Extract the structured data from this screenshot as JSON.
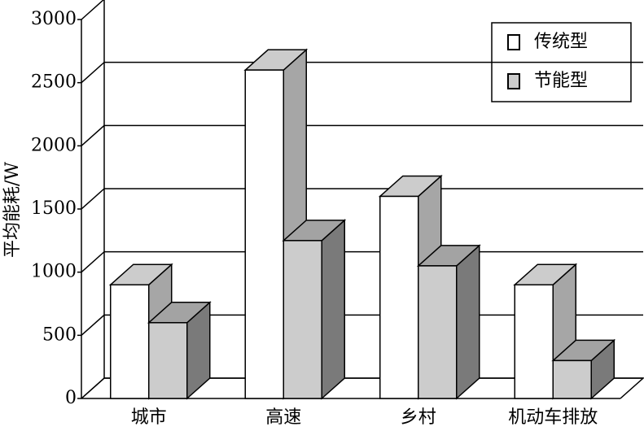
{
  "chart_data": {
    "type": "bar3d",
    "y_label": "平均能耗/W",
    "categories": [
      "城市",
      "高速",
      "乡村",
      "机动车排放"
    ],
    "series": [
      {
        "name": "传统型",
        "color": "#ffffff",
        "values": [
          900,
          2600,
          1600,
          900
        ]
      },
      {
        "name": "节能型",
        "color": "#cccccc",
        "values": [
          600,
          1250,
          1050,
          300
        ]
      }
    ],
    "ylim": [
      0,
      3000
    ],
    "yticks": [
      0,
      500,
      1000,
      1500,
      2000,
      2500,
      3000
    ],
    "grid": true,
    "legend": "upper right"
  }
}
